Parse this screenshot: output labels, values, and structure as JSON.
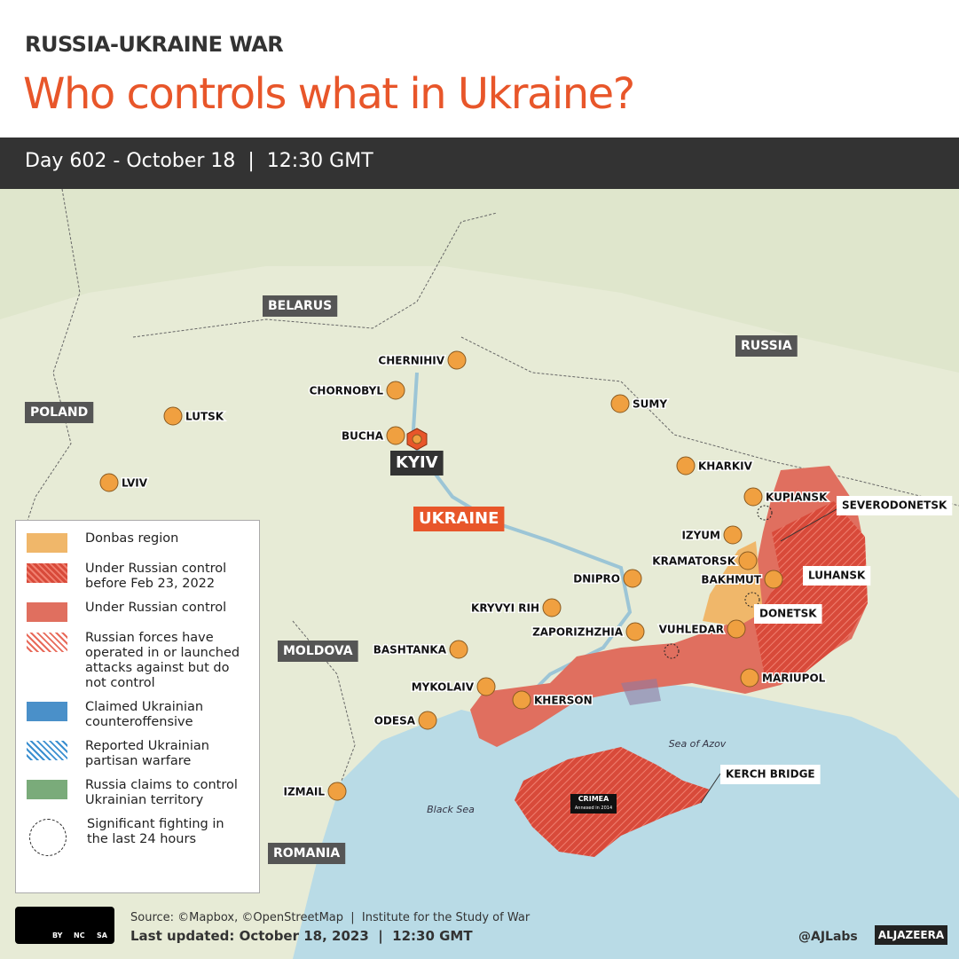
{
  "header": {
    "kicker": "RUSSIA-UKRAINE WAR",
    "title": "Who controls what in Ukraine?",
    "date_bar": "Day 602 - October 18  |  12:30 GMT"
  },
  "countries": [
    "BELARUS",
    "RUSSIA",
    "POLAND",
    "MOLDOVA",
    "ROMANIA"
  ],
  "country_main": "UKRAINE",
  "capital": "KYIV",
  "cities": [
    "CHERNIHIV",
    "CHORNOBYL",
    "LUTSK",
    "SUMY",
    "BUCHA",
    "LVIV",
    "KHARKIV",
    "KUPIANSK",
    "IZYUM",
    "KRAMATORSK",
    "DNIPRO",
    "BAKHMUT",
    "KRYVYI RIH",
    "ZAPORIZHZHIA",
    "VUHLEDAR",
    "BASHTANKA",
    "MARIUPOL",
    "MYKOLAIV",
    "KHERSON",
    "ODESA",
    "IZMAIL"
  ],
  "boxed_labels": [
    "SEVERODONETSK",
    "LUHANSK",
    "DONETSK",
    "KERCH BRIDGE"
  ],
  "seas": [
    "Sea of Azov",
    "Black Sea"
  ],
  "crimea": {
    "label": "CRIMEA",
    "note": "Annexed in 2014"
  },
  "legend": [
    "Donbas region",
    "Under Russian control before Feb 23, 2022",
    "Under Russian control",
    "Russian forces have operated in or launched attacks against but do not control",
    "Claimed Ukrainian counteroffensive",
    "Reported Ukrainian partisan warfare",
    "Russia claims to control Ukrainian territory",
    "Significant fighting in the last 24 hours"
  ],
  "footer": {
    "source": "Source: ©Mapbox, ©OpenStreetMap  |  Institute for the Study of War",
    "updated": "Last updated: October 18, 2023  |  12:30 GMT",
    "credit": "@AJLabs",
    "brand": "ALJAZEERA",
    "license": [
      "BY",
      "NC",
      "SA"
    ]
  }
}
